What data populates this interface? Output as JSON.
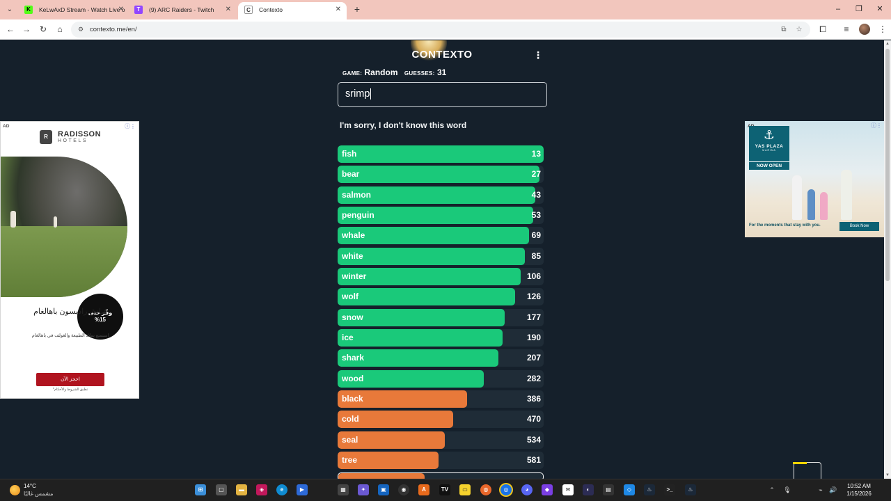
{
  "browser": {
    "tabs": [
      {
        "title": "KeLwAxD Stream - Watch Live o",
        "favicon": "K",
        "color": "#53fc18",
        "active": false
      },
      {
        "title": "(9) ARC Raiders - Twitch",
        "favicon": "T",
        "color": "#9146ff",
        "active": false
      },
      {
        "title": "Contexto",
        "favicon": "C",
        "color": "#444444",
        "active": true
      }
    ],
    "url": "contexto.me/en/"
  },
  "game": {
    "logo": "CONTEXTO",
    "game_label": "GAME:",
    "game_value": "Random",
    "guesses_label": "GUESSES:",
    "guesses_value": "31",
    "input_value": "srimp",
    "message": "I'm sorry, I don't know this word",
    "guesses": [
      {
        "word": "fish",
        "rank": "13",
        "fill": 1.0,
        "color": "#1ac97a"
      },
      {
        "word": "bear",
        "rank": "27",
        "fill": 0.98,
        "color": "#1ac97a"
      },
      {
        "word": "salmon",
        "rank": "43",
        "fill": 0.96,
        "color": "#1ac97a"
      },
      {
        "word": "penguin",
        "rank": "53",
        "fill": 0.95,
        "color": "#1ac97a"
      },
      {
        "word": "whale",
        "rank": "69",
        "fill": 0.93,
        "color": "#1ac97a"
      },
      {
        "word": "white",
        "rank": "85",
        "fill": 0.91,
        "color": "#1ac97a"
      },
      {
        "word": "winter",
        "rank": "106",
        "fill": 0.89,
        "color": "#1ac97a"
      },
      {
        "word": "wolf",
        "rank": "126",
        "fill": 0.86,
        "color": "#1ac97a"
      },
      {
        "word": "snow",
        "rank": "177",
        "fill": 0.81,
        "color": "#1ac97a"
      },
      {
        "word": "ice",
        "rank": "190",
        "fill": 0.8,
        "color": "#1ac97a"
      },
      {
        "word": "shark",
        "rank": "207",
        "fill": 0.78,
        "color": "#1ac97a"
      },
      {
        "word": "wood",
        "rank": "282",
        "fill": 0.71,
        "color": "#1ac97a"
      },
      {
        "word": "black",
        "rank": "386",
        "fill": 0.63,
        "color": "#e8793a"
      },
      {
        "word": "cold",
        "rank": "470",
        "fill": 0.56,
        "color": "#e8793a"
      },
      {
        "word": "seal",
        "rank": "534",
        "fill": 0.52,
        "color": "#e8793a"
      },
      {
        "word": "tree",
        "rank": "581",
        "fill": 0.49,
        "color": "#e8793a"
      }
    ]
  },
  "ads": {
    "ad_label": "AD",
    "left": {
      "brand": "RADISSON",
      "brand_sub": "HOTELS",
      "badge_line1": "وفّر حتى",
      "badge_line2": "%15",
      "title": "فنادق راديسون باهالغام",
      "desc": "استمتع بملاذ الطبيعة والغولف في باهالغام",
      "cta": "احجز الآن",
      "terms": "تطبق الشروط والأحكام*"
    },
    "right": {
      "brand": "YAS PLAZA",
      "brand_sub": "MARINA",
      "badge": "NOW OPEN",
      "tagline": "For the moments that stay with you.",
      "cta": "Book Now"
    }
  },
  "taskbar": {
    "temperature": "14°C",
    "weather": "مشمس غالبًا",
    "time": "10:52 AM",
    "date": "1/15/2026"
  }
}
